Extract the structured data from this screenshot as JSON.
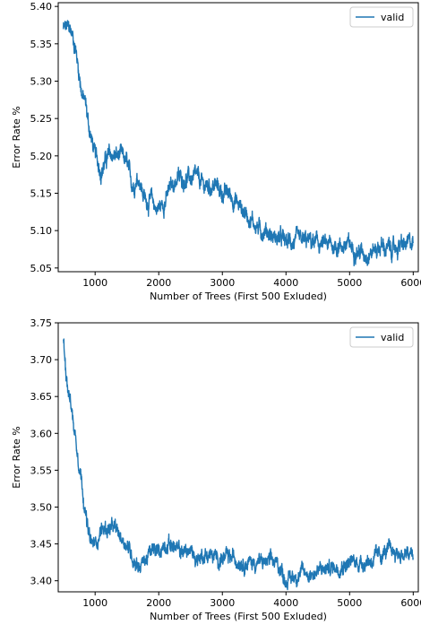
{
  "colors": {
    "series": "#1f77b4",
    "axes": "#000000",
    "legend_border": "#cccccc"
  },
  "chart_data": [
    {
      "type": "line",
      "title": "",
      "xlabel": "Number of Trees (First 500 Exluded)",
      "ylabel": "Error Rate %",
      "xlim": [
        420,
        6080
      ],
      "ylim": [
        5.045,
        5.405
      ],
      "xticks": [
        1000,
        2000,
        3000,
        4000,
        5000,
        6000
      ],
      "yticks": [
        5.05,
        5.1,
        5.15,
        5.2,
        5.25,
        5.3,
        5.35,
        5.4
      ],
      "ytick_labels": [
        "5.05",
        "5.10",
        "5.15",
        "5.20",
        "5.25",
        "5.30",
        "5.35",
        "5.40"
      ],
      "legend": {
        "position": "top-right",
        "entries": [
          "valid"
        ]
      },
      "grid": false,
      "series": [
        {
          "name": "valid",
          "noise": 0.012,
          "x": [
            500,
            550,
            600,
            650,
            700,
            750,
            800,
            850,
            900,
            950,
            1000,
            1050,
            1100,
            1150,
            1200,
            1300,
            1400,
            1500,
            1550,
            1600,
            1650,
            1700,
            1750,
            1800,
            1850,
            1900,
            1950,
            2000,
            2100,
            2200,
            2300,
            2400,
            2500,
            2600,
            2700,
            2800,
            2900,
            3000,
            3100,
            3200,
            3300,
            3400,
            3500,
            3600,
            3700,
            3800,
            3900,
            4000,
            4200,
            4400,
            4600,
            4800,
            5000,
            5100,
            5200,
            5300,
            5400,
            5500,
            5600,
            5700,
            5800,
            5900,
            6000
          ],
          "y": [
            5.37,
            5.37,
            5.37,
            5.36,
            5.34,
            5.31,
            5.28,
            5.27,
            5.24,
            5.22,
            5.2,
            5.19,
            5.18,
            5.19,
            5.2,
            5.2,
            5.2,
            5.19,
            5.17,
            5.16,
            5.17,
            5.17,
            5.15,
            5.14,
            5.14,
            5.14,
            5.13,
            5.13,
            5.14,
            5.16,
            5.17,
            5.17,
            5.17,
            5.17,
            5.16,
            5.16,
            5.16,
            5.15,
            5.15,
            5.14,
            5.13,
            5.12,
            5.11,
            5.1,
            5.1,
            5.09,
            5.09,
            5.085,
            5.085,
            5.085,
            5.08,
            5.08,
            5.08,
            5.075,
            5.07,
            5.07,
            5.075,
            5.08,
            5.075,
            5.075,
            5.08,
            5.08,
            5.085
          ]
        }
      ]
    },
    {
      "type": "line",
      "title": "",
      "xlabel": "Number of Trees (First 500 Exluded)",
      "ylabel": "Error Rate %",
      "xlim": [
        420,
        6080
      ],
      "ylim": [
        3.385,
        3.75
      ],
      "xticks": [
        1000,
        2000,
        3000,
        4000,
        5000,
        6000
      ],
      "yticks": [
        3.4,
        3.45,
        3.5,
        3.55,
        3.6,
        3.65,
        3.7,
        3.75
      ],
      "ytick_labels": [
        "3.40",
        "3.45",
        "3.50",
        "3.55",
        "3.60",
        "3.65",
        "3.70",
        "3.75"
      ],
      "legend": {
        "position": "top-right",
        "entries": [
          "valid"
        ]
      },
      "grid": false,
      "series": [
        {
          "name": "valid",
          "noise": 0.011,
          "x": [
            500,
            550,
            600,
            650,
            700,
            750,
            800,
            850,
            900,
            950,
            1000,
            1050,
            1100,
            1200,
            1300,
            1400,
            1500,
            1600,
            1700,
            1800,
            1900,
            2000,
            2100,
            2200,
            2300,
            2400,
            2500,
            2600,
            2700,
            2800,
            2900,
            3000,
            3200,
            3400,
            3600,
            3800,
            3900,
            4000,
            4100,
            4200,
            4400,
            4600,
            4800,
            5000,
            5200,
            5400,
            5500,
            5600,
            5700,
            5800,
            5900,
            6000
          ],
          "y": [
            3.725,
            3.68,
            3.65,
            3.62,
            3.59,
            3.56,
            3.53,
            3.49,
            3.46,
            3.45,
            3.45,
            3.46,
            3.47,
            3.47,
            3.47,
            3.46,
            3.45,
            3.43,
            3.42,
            3.43,
            3.44,
            3.44,
            3.45,
            3.45,
            3.44,
            3.44,
            3.44,
            3.43,
            3.435,
            3.435,
            3.43,
            3.43,
            3.43,
            3.425,
            3.425,
            3.425,
            3.42,
            3.4,
            3.405,
            3.41,
            3.41,
            3.415,
            3.42,
            3.425,
            3.425,
            3.43,
            3.435,
            3.44,
            3.44,
            3.435,
            3.435,
            3.435
          ]
        }
      ]
    }
  ]
}
